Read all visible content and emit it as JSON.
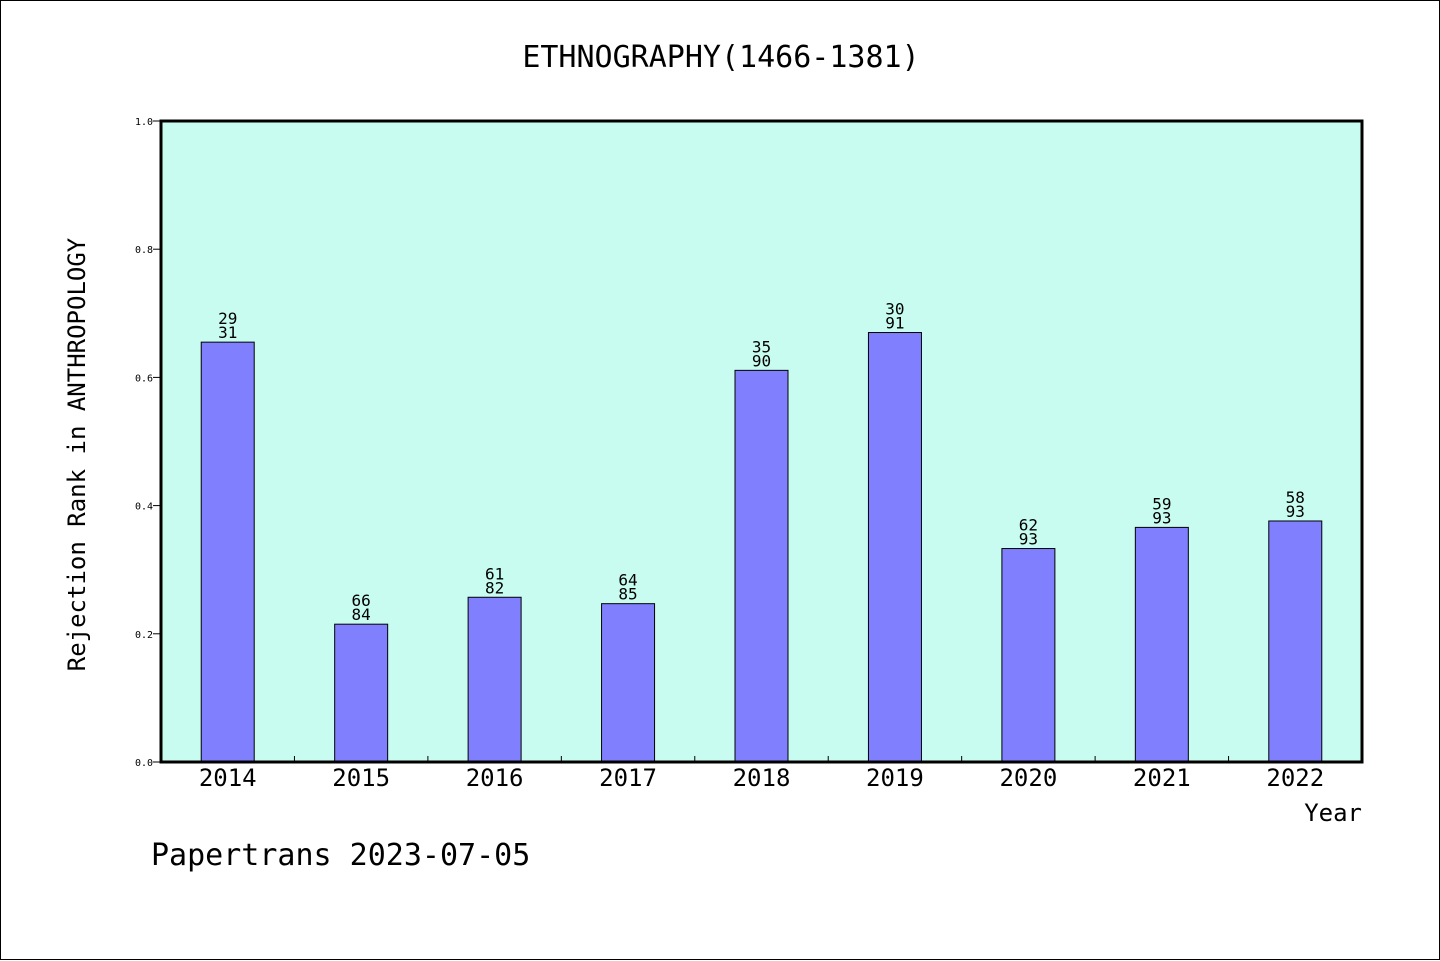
{
  "chart_data": {
    "type": "bar",
    "title": "ETHNOGRAPHY(1466-1381)",
    "xlabel": "Year",
    "ylabel": "Rejection Rank in ANTHROPOLOGY",
    "ylim": [
      0,
      1.0
    ],
    "yticks": [
      "0.0",
      "0.2",
      "0.4",
      "0.6",
      "0.8",
      "1.0"
    ],
    "grid": false,
    "categories": [
      "2014",
      "2015",
      "2016",
      "2017",
      "2018",
      "2019",
      "2020",
      "2021",
      "2022"
    ],
    "values": [
      0.655,
      0.215,
      0.257,
      0.247,
      0.611,
      0.67,
      0.333,
      0.366,
      0.376
    ],
    "bar_labels": [
      [
        "29",
        "31"
      ],
      [
        "66",
        "84"
      ],
      [
        "61",
        "82"
      ],
      [
        "64",
        "85"
      ],
      [
        "35",
        "90"
      ],
      [
        "30",
        "91"
      ],
      [
        "62",
        "93"
      ],
      [
        "59",
        "93"
      ],
      [
        "58",
        "93"
      ]
    ],
    "colors": {
      "bar": "#8080ff",
      "plot_background": "#c8fcf0",
      "axis": "#000000"
    }
  },
  "footer": "Papertrans 2023-07-05"
}
